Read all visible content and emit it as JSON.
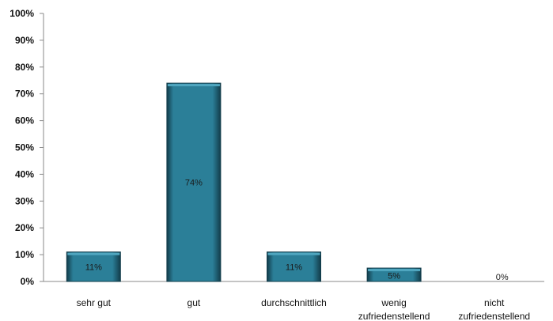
{
  "chart_data": {
    "type": "bar",
    "title": "",
    "xlabel": "",
    "ylabel": "",
    "categories": [
      [
        "sehr gut"
      ],
      [
        "gut"
      ],
      [
        "durchschnittlich"
      ],
      [
        "wenig",
        "zufriedenstellend"
      ],
      [
        "nicht",
        "zufriedenstellend"
      ]
    ],
    "values": [
      11,
      74,
      11,
      5,
      0
    ],
    "data_labels": [
      "11%",
      "74%",
      "11%",
      "5%",
      "0%"
    ],
    "ylim": [
      0,
      100
    ],
    "y_ticks": [
      "0%",
      "10%",
      "20%",
      "30%",
      "40%",
      "50%",
      "60%",
      "70%",
      "80%",
      "90%",
      "100%"
    ],
    "grid": false,
    "legend": "none",
    "colors": {
      "bar_fill": "#2b7f98",
      "bar_top": "#4fa6bf",
      "bar_stroke": "#123c4a",
      "axis": "#8a8a8a"
    }
  }
}
